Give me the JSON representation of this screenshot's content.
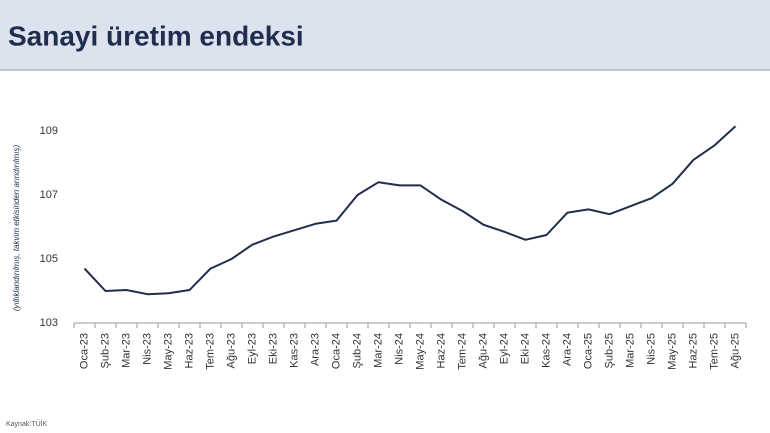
{
  "chart_data": {
    "type": "line",
    "title": "Sanayi üretim endeksi",
    "y_label": "(yıllıklandırılmış, takvim etkisinden arındırılmış)",
    "source": "Kaynak:TÜİK",
    "categories": [
      "Oca-23",
      "Şub-23",
      "Mar-23",
      "Nis-23",
      "May-23",
      "Haz-23",
      "Tem-23",
      "Ağu-23",
      "Eyl-23",
      "Eki-23",
      "Kas-23",
      "Ara-23",
      "Oca-24",
      "Şub-24",
      "Mar-24",
      "Nis-24",
      "May-24",
      "Haz-24",
      "Tem-24",
      "Ağu-24",
      "Eyl-24",
      "Eki-24",
      "Kas-24",
      "Ara-24",
      "Oca-25",
      "Şub-25",
      "Mar-25",
      "Nis-25",
      "May-25",
      "Haz-25",
      "Tem-25",
      "Ağu-25"
    ],
    "values": [
      104.7,
      104.0,
      104.03,
      103.9,
      103.93,
      104.03,
      104.7,
      105.0,
      105.45,
      105.7,
      105.9,
      106.1,
      106.2,
      107.0,
      107.4,
      107.3,
      107.3,
      106.85,
      106.5,
      106.07,
      105.85,
      105.6,
      105.75,
      106.45,
      106.55,
      106.4,
      106.65,
      106.9,
      107.35,
      108.1,
      108.55,
      109.15
    ],
    "color": "#1f2d4e",
    "ylim": [
      103,
      109.5
    ],
    "yticks": [
      103,
      105,
      107,
      109
    ],
    "grid": false
  }
}
